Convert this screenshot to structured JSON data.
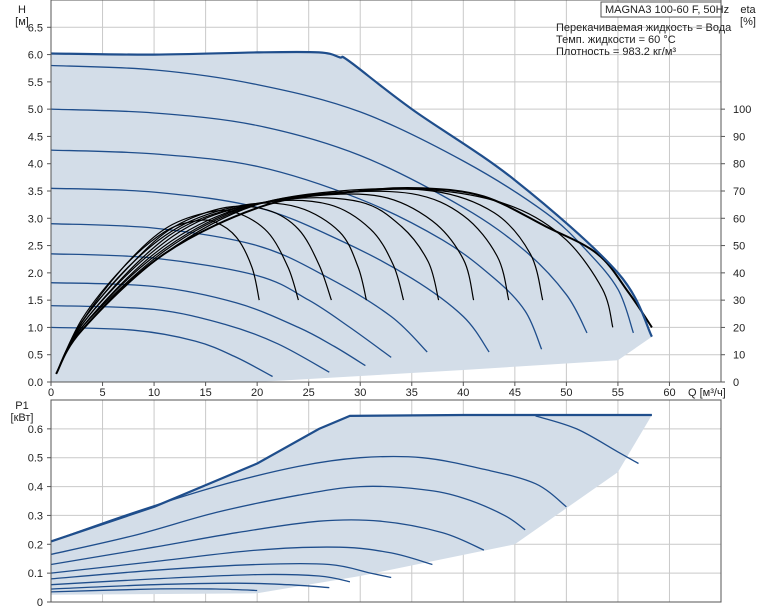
{
  "chart_data": [
    {
      "type": "line",
      "title": "MAGNA3 100-60 F, 50Hz",
      "notes": [
        "Перекачиваемая жидкость = Вода",
        "Темп. жидкости = 60 °C",
        "Плотность = 983.2 кг/м³"
      ],
      "xlabel": "Q [м³/ч]",
      "ylabel_left": [
        "H",
        "[м]"
      ],
      "ylabel_right": [
        "eta",
        "[%]"
      ],
      "xlim": [
        0,
        65
      ],
      "ylim_left": [
        0,
        7.0
      ],
      "ylim_right": [
        0,
        140
      ],
      "x_ticks": [
        0,
        5,
        10,
        15,
        20,
        25,
        30,
        35,
        40,
        45,
        50,
        55,
        60
      ],
      "y_ticks_left": [
        0.0,
        0.5,
        1.0,
        1.5,
        2.0,
        2.5,
        3.0,
        3.5,
        4.0,
        4.5,
        5.0,
        5.5,
        6.0,
        6.5
      ],
      "y_ticks_right": [
        0,
        10,
        20,
        30,
        40,
        50,
        60,
        70,
        80,
        90,
        100
      ],
      "grid": true,
      "head_envelope": {
        "top": [
          [
            0,
            6.02
          ],
          [
            10,
            6.0
          ],
          [
            20,
            6.04
          ],
          [
            26,
            6.04
          ],
          [
            28,
            5.95
          ],
          [
            29,
            5.87
          ],
          [
            35,
            5.0
          ],
          [
            45,
            3.7
          ],
          [
            55,
            2.0
          ],
          [
            58.3,
            0.83
          ]
        ],
        "bottom": [
          [
            0,
            0
          ],
          [
            20,
            0
          ],
          [
            40,
            0.22
          ],
          [
            55,
            0.4
          ],
          [
            58.3,
            0.83
          ]
        ]
      },
      "head_series": [
        {
          "values": [
            [
              0,
              5.8
            ],
            [
              10,
              5.72
            ],
            [
              20,
              5.45
            ],
            [
              30,
              4.95
            ],
            [
              40,
              4.05
            ],
            [
              48,
              3.1
            ],
            [
              52,
              2.4
            ],
            [
              55,
              1.7
            ],
            [
              56.5,
              0.9
            ]
          ]
        },
        {
          "values": [
            [
              0,
              5.0
            ],
            [
              10,
              4.93
            ],
            [
              20,
              4.7
            ],
            [
              30,
              4.15
            ],
            [
              40,
              3.2
            ],
            [
              46,
              2.4
            ],
            [
              50,
              1.6
            ],
            [
              52,
              0.9
            ]
          ]
        },
        {
          "values": [
            [
              0,
              4.25
            ],
            [
              10,
              4.18
            ],
            [
              20,
              3.95
            ],
            [
              30,
              3.35
            ],
            [
              38,
              2.6
            ],
            [
              43,
              1.9
            ],
            [
              46,
              1.3
            ],
            [
              47.6,
              0.6
            ]
          ]
        },
        {
          "values": [
            [
              0,
              3.55
            ],
            [
              10,
              3.48
            ],
            [
              20,
              3.2
            ],
            [
              28,
              2.6
            ],
            [
              35,
              1.9
            ],
            [
              40,
              1.2
            ],
            [
              42.5,
              0.55
            ]
          ]
        },
        {
          "values": [
            [
              0,
              2.9
            ],
            [
              10,
              2.82
            ],
            [
              20,
              2.5
            ],
            [
              27,
              1.9
            ],
            [
              33,
              1.2
            ],
            [
              36.5,
              0.55
            ]
          ]
        },
        {
          "values": [
            [
              0,
              2.35
            ],
            [
              10,
              2.27
            ],
            [
              20,
              1.95
            ],
            [
              25,
              1.5
            ],
            [
              29,
              1.0
            ],
            [
              33,
              0.45
            ]
          ]
        },
        {
          "values": [
            [
              0,
              1.82
            ],
            [
              10,
              1.75
            ],
            [
              18,
              1.45
            ],
            [
              24,
              1.0
            ],
            [
              27.5,
              0.65
            ],
            [
              30.5,
              0.3
            ]
          ]
        },
        {
          "values": [
            [
              0,
              1.4
            ],
            [
              10,
              1.33
            ],
            [
              17,
              1.05
            ],
            [
              22,
              0.7
            ],
            [
              27,
              0.18
            ]
          ]
        },
        {
          "values": [
            [
              0,
              1.0
            ],
            [
              8,
              0.95
            ],
            [
              14,
              0.75
            ],
            [
              18,
              0.45
            ],
            [
              21.5,
              0.1
            ]
          ]
        }
      ],
      "efficiency_series": [
        {
          "values": [
            [
              0.5,
              3
            ],
            [
              3,
              23
            ],
            [
              7,
              42
            ],
            [
              11,
              55
            ],
            [
              14,
              59
            ],
            [
              16,
              58.5
            ],
            [
              18,
              53
            ],
            [
              19.5,
              42
            ],
            [
              20.2,
              30
            ]
          ]
        },
        {
          "values": [
            [
              0.5,
              3
            ],
            [
              3,
              22
            ],
            [
              7,
              42
            ],
            [
              11,
              56
            ],
            [
              15,
              62
            ],
            [
              18,
              62
            ],
            [
              21,
              55
            ],
            [
              23,
              42
            ],
            [
              24,
              30
            ]
          ]
        },
        {
          "values": [
            [
              0.5,
              3
            ],
            [
              3,
              22
            ],
            [
              8,
              44
            ],
            [
              12,
              57
            ],
            [
              17,
              64
            ],
            [
              21,
              63
            ],
            [
              24,
              56
            ],
            [
              26,
              43
            ],
            [
              27.2,
              30
            ]
          ]
        },
        {
          "values": [
            [
              0.5,
              3
            ],
            [
              3,
              22
            ],
            [
              8,
              44
            ],
            [
              13,
              58
            ],
            [
              19,
              65
            ],
            [
              24,
              64
            ],
            [
              28,
              55
            ],
            [
              29.8,
              42
            ],
            [
              30.6,
              30
            ]
          ]
        },
        {
          "values": [
            [
              0.5,
              3
            ],
            [
              3,
              21
            ],
            [
              9,
              46
            ],
            [
              14,
              59
            ],
            [
              21,
              66
            ],
            [
              27,
              65
            ],
            [
              31,
              56
            ],
            [
              33.2,
              43
            ],
            [
              34.2,
              30
            ]
          ]
        },
        {
          "values": [
            [
              0.5,
              3
            ],
            [
              3,
              21
            ],
            [
              9,
              45
            ],
            [
              15,
              60
            ],
            [
              23,
              67
            ],
            [
              30,
              66
            ],
            [
              34,
              57
            ],
            [
              36.6,
              44
            ],
            [
              37.6,
              30
            ]
          ]
        },
        {
          "values": [
            [
              0.5,
              3
            ],
            [
              3,
              20
            ],
            [
              10,
              47
            ],
            [
              17,
              62
            ],
            [
              25,
              68
            ],
            [
              32,
              68
            ],
            [
              37,
              59
            ],
            [
              40,
              45
            ],
            [
              41,
              30
            ]
          ]
        },
        {
          "values": [
            [
              0.5,
              3
            ],
            [
              3,
              20
            ],
            [
              10,
              46
            ],
            [
              18,
              63
            ],
            [
              27,
              69
            ],
            [
              35,
              69
            ],
            [
              40,
              61
            ],
            [
              43.3,
              46
            ],
            [
              44.4,
              30
            ]
          ]
        },
        {
          "values": [
            [
              0.5,
              3
            ],
            [
              3,
              20
            ],
            [
              11,
              48
            ],
            [
              19,
              64
            ],
            [
              28,
              70
            ],
            [
              37,
              70
            ],
            [
              43,
              62
            ],
            [
              46.5,
              47
            ],
            [
              47.7,
              30
            ]
          ]
        },
        {
          "values": [
            [
              0.5,
              3
            ],
            [
              3,
              19
            ],
            [
              11,
              47
            ],
            [
              20,
              65
            ],
            [
              30,
              70
            ],
            [
              38,
              70
            ],
            [
              45,
              64
            ],
            [
              50,
              52
            ],
            [
              53.5,
              34
            ],
            [
              54.5,
              20
            ]
          ]
        }
      ],
      "efficiency_max_series": {
        "values": [
          [
            0.5,
            3
          ],
          [
            3,
            19
          ],
          [
            11,
            47
          ],
          [
            21,
            65
          ],
          [
            30,
            70
          ],
          [
            36,
            71
          ],
          [
            42,
            68
          ],
          [
            48,
            57
          ],
          [
            53,
            47
          ],
          [
            56,
            33
          ],
          [
            58.3,
            20
          ]
        ]
      }
    },
    {
      "type": "line",
      "xlim": [
        0,
        65
      ],
      "ylim": [
        0,
        0.7
      ],
      "ylabel": [
        "P1",
        "[кВт]"
      ],
      "y_ticks": [
        0,
        0.1,
        0.2,
        0.3,
        0.4,
        0.5,
        0.6
      ],
      "grid": true,
      "power_envelope": {
        "top": [
          [
            0,
            0.21
          ],
          [
            10,
            0.33
          ],
          [
            20,
            0.48
          ],
          [
            26,
            0.6
          ],
          [
            29,
            0.645
          ],
          [
            40,
            0.648
          ],
          [
            58.3,
            0.648
          ]
        ],
        "bottom": [
          [
            0,
            0.025
          ],
          [
            20,
            0.03
          ],
          [
            30,
            0.09
          ],
          [
            45,
            0.2
          ],
          [
            55,
            0.45
          ],
          [
            58.3,
            0.648
          ]
        ]
      },
      "power_series": [
        {
          "values": [
            [
              47,
              0.645
            ],
            [
              51,
              0.6
            ],
            [
              55,
              0.52
            ],
            [
              57,
              0.48
            ]
          ]
        },
        {
          "values": [
            [
              0,
              0.21
            ],
            [
              8,
              0.31
            ],
            [
              16,
              0.4
            ],
            [
              24,
              0.47
            ],
            [
              30,
              0.5
            ],
            [
              36,
              0.5
            ],
            [
              42,
              0.46
            ],
            [
              47,
              0.41
            ],
            [
              50,
              0.33
            ]
          ]
        },
        {
          "values": [
            [
              0,
              0.165
            ],
            [
              8,
              0.23
            ],
            [
              16,
              0.31
            ],
            [
              24,
              0.37
            ],
            [
              30,
              0.4
            ],
            [
              36,
              0.39
            ],
            [
              40,
              0.36
            ],
            [
              44,
              0.3
            ],
            [
              46,
              0.25
            ]
          ]
        },
        {
          "values": [
            [
              0,
              0.13
            ],
            [
              10,
              0.19
            ],
            [
              18,
              0.24
            ],
            [
              26,
              0.28
            ],
            [
              32,
              0.28
            ],
            [
              38,
              0.24
            ],
            [
              42,
              0.18
            ]
          ]
        },
        {
          "values": [
            [
              0,
              0.1
            ],
            [
              10,
              0.14
            ],
            [
              20,
              0.18
            ],
            [
              28,
              0.19
            ],
            [
              33,
              0.17
            ],
            [
              37,
              0.13
            ]
          ]
        },
        {
          "values": [
            [
              0,
              0.08
            ],
            [
              10,
              0.11
            ],
            [
              20,
              0.13
            ],
            [
              27,
              0.13
            ],
            [
              31,
              0.1
            ],
            [
              33,
              0.085
            ]
          ]
        },
        {
          "values": [
            [
              0,
              0.06
            ],
            [
              10,
              0.08
            ],
            [
              20,
              0.095
            ],
            [
              26,
              0.09
            ],
            [
              29,
              0.07
            ]
          ]
        },
        {
          "values": [
            [
              0,
              0.045
            ],
            [
              10,
              0.06
            ],
            [
              18,
              0.065
            ],
            [
              23,
              0.06
            ],
            [
              27,
              0.05
            ]
          ]
        },
        {
          "values": [
            [
              0,
              0.035
            ],
            [
              10,
              0.045
            ],
            [
              16,
              0.045
            ],
            [
              20,
              0.04
            ]
          ]
        }
      ]
    }
  ]
}
